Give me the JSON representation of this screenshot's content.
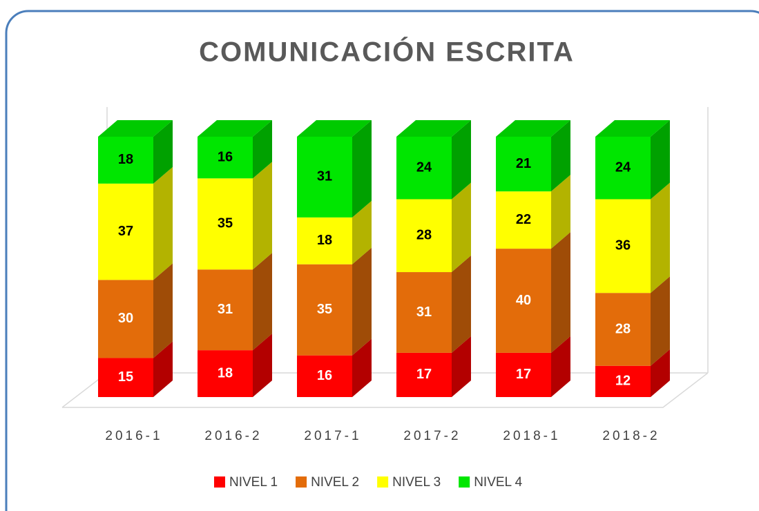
{
  "chart_data": {
    "type": "bar3d_stacked",
    "title": "COMUNICACIÓN ESCRITA",
    "categories": [
      "2016-1",
      "2016-2",
      "2017-1",
      "2017-2",
      "2018-1",
      "2018-2"
    ],
    "series": [
      {
        "name": "NIVEL 1",
        "color": "#ff0000",
        "values": [
          15,
          18,
          16,
          17,
          17,
          12
        ]
      },
      {
        "name": "NIVEL 2",
        "color": "#e36c0a",
        "values": [
          30,
          31,
          35,
          31,
          40,
          28
        ]
      },
      {
        "name": "NIVEL 3",
        "color": "#ffff00",
        "values": [
          37,
          35,
          18,
          28,
          22,
          36
        ]
      },
      {
        "name": "NIVEL 4",
        "color": "#00e600",
        "values": [
          18,
          16,
          31,
          24,
          21,
          24
        ]
      }
    ],
    "legend": "bottom"
  }
}
